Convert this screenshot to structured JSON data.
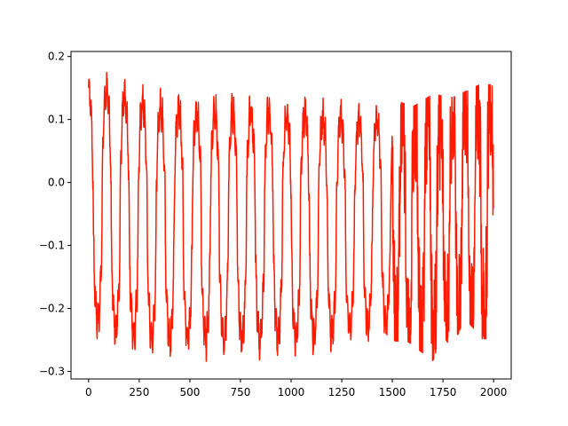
{
  "chart_data": {
    "type": "line",
    "title": "",
    "xlabel": "",
    "ylabel": "",
    "xlim": [
      -87,
      2087
    ],
    "ylim": [
      -0.312,
      0.208
    ],
    "xticks": [
      0,
      250,
      500,
      750,
      1000,
      1250,
      1500,
      1750,
      2000
    ],
    "xtick_labels": [
      "0",
      "250",
      "500",
      "750",
      "1000",
      "1250",
      "1500",
      "1750",
      "2000"
    ],
    "yticks": [
      -0.3,
      -0.2,
      -0.1,
      0.0,
      0.1,
      0.2
    ],
    "ytick_labels": [
      "−0.3",
      "−0.2",
      "−0.1",
      "0.0",
      "0.1",
      "0.2"
    ],
    "grid": false,
    "legend": "none",
    "series": [
      {
        "color": "#ff1a00",
        "points": 2000,
        "periodic_peaks": [
          [
            80,
            0.182
          ],
          [
            150,
            0.166
          ],
          [
            250,
            0.158
          ],
          [
            330,
            0.154
          ],
          [
            430,
            0.15
          ],
          [
            525,
            0.148
          ],
          [
            610,
            0.146
          ],
          [
            700,
            0.145
          ],
          [
            795,
            0.144
          ],
          [
            880,
            0.143
          ],
          [
            975,
            0.142
          ],
          [
            1060,
            0.14
          ],
          [
            1160,
            0.135
          ],
          [
            1245,
            0.132
          ],
          [
            1330,
            0.13
          ],
          [
            1420,
            0.128
          ],
          [
            1510,
            0.131
          ],
          [
            1600,
            0.12
          ],
          [
            1700,
            0.14
          ],
          [
            1800,
            0.135
          ],
          [
            1930,
            0.155
          ]
        ],
        "periodic_troughs": [
          [
            5,
            -0.243
          ],
          [
            115,
            -0.258
          ],
          [
            200,
            -0.27
          ],
          [
            280,
            -0.277
          ],
          [
            370,
            -0.278
          ],
          [
            455,
            -0.28
          ],
          [
            545,
            -0.282
          ],
          [
            615,
            -0.286
          ],
          [
            720,
            -0.28
          ],
          [
            790,
            -0.285
          ],
          [
            880,
            -0.28
          ],
          [
            985,
            -0.278
          ],
          [
            1060,
            -0.275
          ],
          [
            1200,
            -0.27
          ],
          [
            1290,
            -0.26
          ],
          [
            1375,
            -0.255
          ],
          [
            1440,
            -0.25
          ],
          [
            1580,
            -0.253
          ],
          [
            1700,
            -0.283
          ],
          [
            1750,
            -0.24
          ],
          [
            1790,
            -0.265
          ],
          [
            1860,
            -0.215
          ],
          [
            1940,
            -0.248
          ]
        ]
      }
    ]
  }
}
